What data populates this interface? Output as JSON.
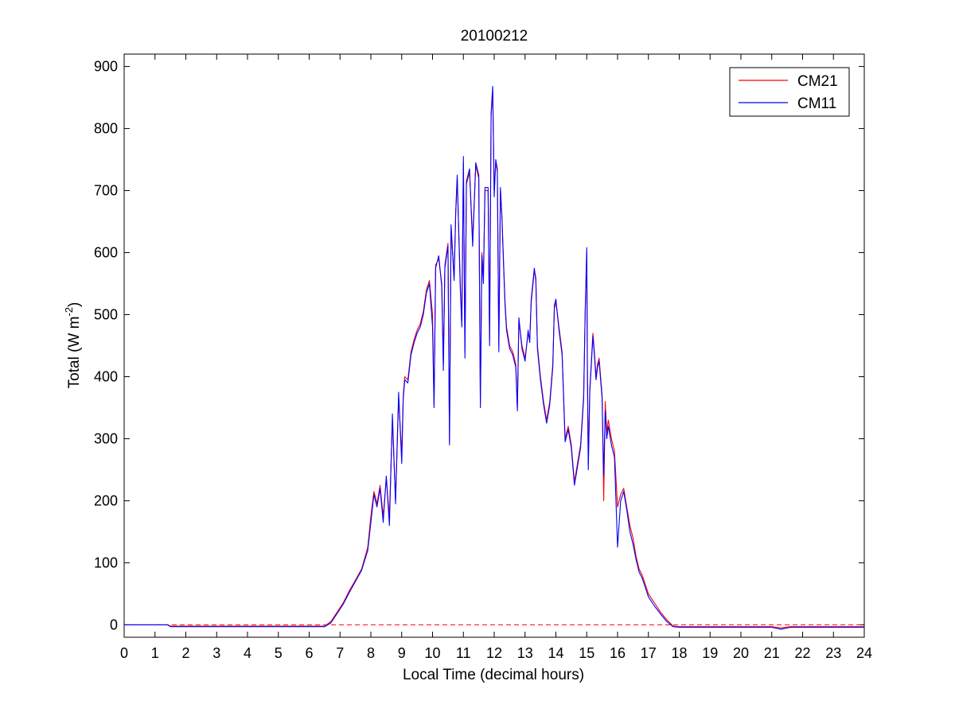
{
  "chart_data": {
    "type": "line",
    "title": "20100212",
    "xlabel": "Local Time (decimal hours)",
    "ylabel": {
      "main": "Total (W m",
      "superscript": "-2",
      "close": ")"
    },
    "xlim": [
      0,
      24
    ],
    "ylim": [
      -20,
      920
    ],
    "x_ticks": [
      0,
      1,
      2,
      3,
      4,
      5,
      6,
      7,
      8,
      9,
      10,
      11,
      12,
      13,
      14,
      15,
      16,
      17,
      18,
      19,
      20,
      21,
      22,
      23,
      24
    ],
    "y_ticks": [
      0,
      100,
      200,
      300,
      400,
      500,
      600,
      700,
      800,
      900
    ],
    "grid": false,
    "legend_position": "top-right",
    "reference_line": {
      "y": 0,
      "style": "dashed",
      "color": "#ff0000"
    },
    "series": [
      {
        "name": "CM21",
        "color": "#ff0000",
        "points": [
          [
            0,
            0
          ],
          [
            1.4,
            0
          ],
          [
            1.5,
            -2
          ],
          [
            3,
            -2
          ],
          [
            5,
            -2
          ],
          [
            6.5,
            -2
          ],
          [
            6.7,
            5
          ],
          [
            6.9,
            20
          ],
          [
            7.1,
            35
          ],
          [
            7.3,
            55
          ],
          [
            7.5,
            72
          ],
          [
            7.7,
            90
          ],
          [
            7.9,
            125
          ],
          [
            8.0,
            175
          ],
          [
            8.1,
            215
          ],
          [
            8.2,
            195
          ],
          [
            8.3,
            225
          ],
          [
            8.4,
            175
          ],
          [
            8.5,
            235
          ],
          [
            8.6,
            175
          ],
          [
            8.7,
            330
          ],
          [
            8.8,
            200
          ],
          [
            8.9,
            365
          ],
          [
            9.0,
            275
          ],
          [
            9.05,
            370
          ],
          [
            9.1,
            400
          ],
          [
            9.2,
            395
          ],
          [
            9.3,
            440
          ],
          [
            9.4,
            460
          ],
          [
            9.5,
            475
          ],
          [
            9.6,
            485
          ],
          [
            9.7,
            505
          ],
          [
            9.8,
            540
          ],
          [
            9.9,
            555
          ],
          [
            10.0,
            500
          ],
          [
            10.05,
            355
          ],
          [
            10.1,
            580
          ],
          [
            10.2,
            590
          ],
          [
            10.3,
            550
          ],
          [
            10.35,
            420
          ],
          [
            10.4,
            580
          ],
          [
            10.5,
            615
          ],
          [
            10.55,
            295
          ],
          [
            10.6,
            640
          ],
          [
            10.7,
            560
          ],
          [
            10.75,
            660
          ],
          [
            10.8,
            720
          ],
          [
            10.9,
            550
          ],
          [
            10.95,
            490
          ],
          [
            11.0,
            745
          ],
          [
            11.05,
            440
          ],
          [
            11.1,
            710
          ],
          [
            11.2,
            730
          ],
          [
            11.3,
            620
          ],
          [
            11.4,
            740
          ],
          [
            11.5,
            720
          ],
          [
            11.55,
            360
          ],
          [
            11.6,
            600
          ],
          [
            11.65,
            560
          ],
          [
            11.7,
            700
          ],
          [
            11.8,
            700
          ],
          [
            11.85,
            460
          ],
          [
            11.9,
            820
          ],
          [
            11.95,
            860
          ],
          [
            12.0,
            700
          ],
          [
            12.05,
            745
          ],
          [
            12.1,
            730
          ],
          [
            12.15,
            450
          ],
          [
            12.2,
            700
          ],
          [
            12.25,
            660
          ],
          [
            12.3,
            590
          ],
          [
            12.35,
            520
          ],
          [
            12.4,
            480
          ],
          [
            12.5,
            450
          ],
          [
            12.6,
            440
          ],
          [
            12.7,
            420
          ],
          [
            12.75,
            350
          ],
          [
            12.8,
            490
          ],
          [
            12.9,
            450
          ],
          [
            13.0,
            430
          ],
          [
            13.1,
            470
          ],
          [
            13.15,
            460
          ],
          [
            13.2,
            520
          ],
          [
            13.3,
            570
          ],
          [
            13.35,
            560
          ],
          [
            13.4,
            450
          ],
          [
            13.5,
            400
          ],
          [
            13.6,
            360
          ],
          [
            13.7,
            330
          ],
          [
            13.8,
            360
          ],
          [
            13.9,
            420
          ],
          [
            13.95,
            510
          ],
          [
            14.0,
            520
          ],
          [
            14.1,
            480
          ],
          [
            14.2,
            440
          ],
          [
            14.3,
            300
          ],
          [
            14.4,
            320
          ],
          [
            14.5,
            290
          ],
          [
            14.6,
            230
          ],
          [
            14.7,
            260
          ],
          [
            14.8,
            290
          ],
          [
            14.9,
            370
          ],
          [
            14.95,
            500
          ],
          [
            15.0,
            600
          ],
          [
            15.02,
            430
          ],
          [
            15.05,
            260
          ],
          [
            15.1,
            380
          ],
          [
            15.2,
            470
          ],
          [
            15.25,
            440
          ],
          [
            15.3,
            400
          ],
          [
            15.35,
            420
          ],
          [
            15.4,
            430
          ],
          [
            15.5,
            370
          ],
          [
            15.55,
            200
          ],
          [
            15.6,
            360
          ],
          [
            15.65,
            310
          ],
          [
            15.7,
            330
          ],
          [
            15.8,
            300
          ],
          [
            15.9,
            280
          ],
          [
            16.0,
            190
          ],
          [
            16.1,
            210
          ],
          [
            16.2,
            220
          ],
          [
            16.3,
            190
          ],
          [
            16.4,
            160
          ],
          [
            16.5,
            140
          ],
          [
            16.6,
            110
          ],
          [
            16.7,
            90
          ],
          [
            16.8,
            80
          ],
          [
            16.9,
            65
          ],
          [
            17.0,
            50
          ],
          [
            17.2,
            35
          ],
          [
            17.4,
            20
          ],
          [
            17.6,
            8
          ],
          [
            17.8,
            -2
          ],
          [
            18.0,
            -3
          ],
          [
            19,
            -3
          ],
          [
            20,
            -3
          ],
          [
            21,
            -3
          ],
          [
            21.3,
            -5
          ],
          [
            21.6,
            -3
          ],
          [
            22,
            -3
          ],
          [
            23,
            -3
          ],
          [
            24,
            -3
          ]
        ]
      },
      {
        "name": "CM11",
        "color": "#0000ff",
        "points": [
          [
            0,
            0
          ],
          [
            1.4,
            0
          ],
          [
            1.5,
            -3
          ],
          [
            3,
            -3
          ],
          [
            5,
            -3
          ],
          [
            6.5,
            -3
          ],
          [
            6.7,
            3
          ],
          [
            6.9,
            18
          ],
          [
            7.1,
            33
          ],
          [
            7.3,
            52
          ],
          [
            7.5,
            70
          ],
          [
            7.7,
            88
          ],
          [
            7.9,
            120
          ],
          [
            8.0,
            165
          ],
          [
            8.1,
            210
          ],
          [
            8.2,
            190
          ],
          [
            8.3,
            220
          ],
          [
            8.4,
            165
          ],
          [
            8.5,
            240
          ],
          [
            8.6,
            160
          ],
          [
            8.7,
            340
          ],
          [
            8.8,
            195
          ],
          [
            8.9,
            375
          ],
          [
            9.0,
            260
          ],
          [
            9.05,
            365
          ],
          [
            9.1,
            395
          ],
          [
            9.2,
            390
          ],
          [
            9.3,
            435
          ],
          [
            9.4,
            455
          ],
          [
            9.5,
            470
          ],
          [
            9.6,
            480
          ],
          [
            9.7,
            500
          ],
          [
            9.8,
            535
          ],
          [
            9.9,
            550
          ],
          [
            10.0,
            480
          ],
          [
            10.05,
            350
          ],
          [
            10.1,
            575
          ],
          [
            10.2,
            595
          ],
          [
            10.3,
            545
          ],
          [
            10.35,
            410
          ],
          [
            10.4,
            575
          ],
          [
            10.5,
            610
          ],
          [
            10.55,
            290
          ],
          [
            10.6,
            645
          ],
          [
            10.7,
            555
          ],
          [
            10.75,
            665
          ],
          [
            10.8,
            725
          ],
          [
            10.9,
            540
          ],
          [
            10.95,
            480
          ],
          [
            11.0,
            755
          ],
          [
            11.05,
            430
          ],
          [
            11.1,
            715
          ],
          [
            11.2,
            735
          ],
          [
            11.3,
            610
          ],
          [
            11.4,
            745
          ],
          [
            11.5,
            725
          ],
          [
            11.55,
            350
          ],
          [
            11.6,
            595
          ],
          [
            11.65,
            550
          ],
          [
            11.7,
            705
          ],
          [
            11.8,
            705
          ],
          [
            11.85,
            450
          ],
          [
            11.9,
            825
          ],
          [
            11.95,
            868
          ],
          [
            12.0,
            690
          ],
          [
            12.05,
            750
          ],
          [
            12.1,
            735
          ],
          [
            12.15,
            440
          ],
          [
            12.2,
            705
          ],
          [
            12.25,
            655
          ],
          [
            12.3,
            585
          ],
          [
            12.35,
            515
          ],
          [
            12.4,
            475
          ],
          [
            12.5,
            445
          ],
          [
            12.6,
            435
          ],
          [
            12.7,
            415
          ],
          [
            12.75,
            345
          ],
          [
            12.8,
            495
          ],
          [
            12.9,
            445
          ],
          [
            13.0,
            425
          ],
          [
            13.1,
            475
          ],
          [
            13.15,
            455
          ],
          [
            13.2,
            525
          ],
          [
            13.3,
            575
          ],
          [
            13.35,
            555
          ],
          [
            13.4,
            445
          ],
          [
            13.5,
            395
          ],
          [
            13.6,
            355
          ],
          [
            13.7,
            325
          ],
          [
            13.8,
            355
          ],
          [
            13.9,
            415
          ],
          [
            13.95,
            515
          ],
          [
            14.0,
            525
          ],
          [
            14.1,
            475
          ],
          [
            14.2,
            435
          ],
          [
            14.3,
            295
          ],
          [
            14.4,
            315
          ],
          [
            14.5,
            285
          ],
          [
            14.6,
            225
          ],
          [
            14.7,
            255
          ],
          [
            14.8,
            285
          ],
          [
            14.9,
            365
          ],
          [
            14.95,
            505
          ],
          [
            15.0,
            608
          ],
          [
            15.02,
            420
          ],
          [
            15.05,
            250
          ],
          [
            15.1,
            375
          ],
          [
            15.2,
            465
          ],
          [
            15.25,
            435
          ],
          [
            15.3,
            395
          ],
          [
            15.35,
            415
          ],
          [
            15.4,
            425
          ],
          [
            15.5,
            365
          ],
          [
            15.55,
            240
          ],
          [
            15.6,
            345
          ],
          [
            15.65,
            300
          ],
          [
            15.7,
            320
          ],
          [
            15.8,
            290
          ],
          [
            15.9,
            270
          ],
          [
            16.0,
            125
          ],
          [
            16.1,
            200
          ],
          [
            16.2,
            215
          ],
          [
            16.3,
            185
          ],
          [
            16.4,
            150
          ],
          [
            16.5,
            130
          ],
          [
            16.6,
            105
          ],
          [
            16.7,
            85
          ],
          [
            16.8,
            75
          ],
          [
            16.9,
            60
          ],
          [
            17.0,
            45
          ],
          [
            17.2,
            30
          ],
          [
            17.4,
            17
          ],
          [
            17.6,
            5
          ],
          [
            17.8,
            -3
          ],
          [
            18.0,
            -4
          ],
          [
            19,
            -4
          ],
          [
            20,
            -4
          ],
          [
            21,
            -4
          ],
          [
            21.3,
            -7
          ],
          [
            21.6,
            -4
          ],
          [
            22,
            -4
          ],
          [
            23,
            -4
          ],
          [
            24,
            -4
          ]
        ]
      }
    ]
  }
}
